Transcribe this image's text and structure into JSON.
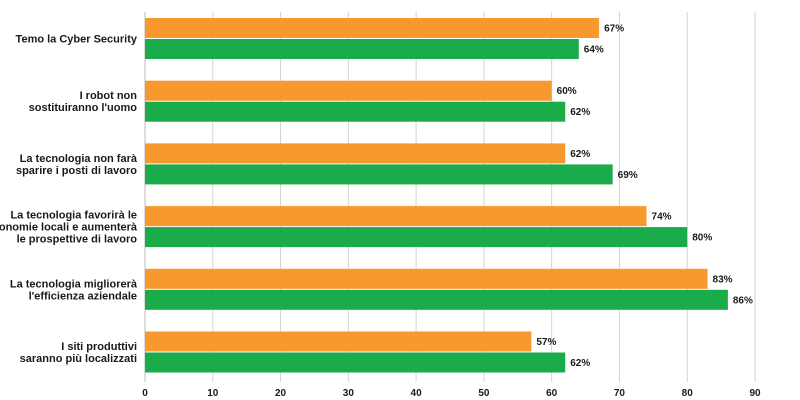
{
  "chart_data": {
    "type": "bar",
    "orientation": "horizontal",
    "categories": [
      [
        "Temo la Cyber Security"
      ],
      [
        "I robot non",
        "sostituiranno l'uomo"
      ],
      [
        "La tecnologia non farà",
        "sparire i posti di lavoro"
      ],
      [
        "La tecnologia favorirà le",
        "economie locali e aumenterà",
        "le prospettive di lavoro"
      ],
      [
        "La tecnologia migliorerà",
        "l'efficienza aziendale"
      ],
      [
        "I siti produttivi",
        "saranno più localizzati"
      ]
    ],
    "series": [
      {
        "color": "#f7992e",
        "values": [
          67,
          60,
          62,
          74,
          83,
          57
        ],
        "labels": [
          "67%",
          "60%",
          "62%",
          "74%",
          "83%",
          "57%"
        ]
      },
      {
        "color": "#1aab4b",
        "values": [
          64,
          62,
          69,
          80,
          86,
          62
        ],
        "labels": [
          "64%",
          "62%",
          "69%",
          "80%",
          "86%",
          "62%"
        ]
      }
    ],
    "xlim": [
      0,
      90
    ],
    "xticks": [
      0,
      10,
      20,
      30,
      40,
      50,
      60,
      70,
      80,
      90
    ],
    "grid": true,
    "legend": "none"
  }
}
